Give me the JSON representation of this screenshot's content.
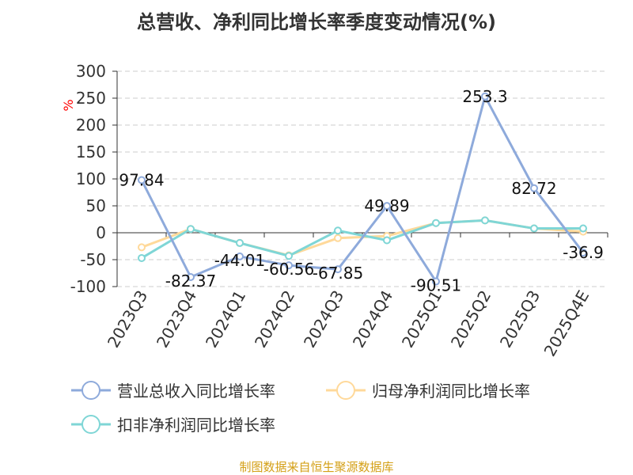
{
  "title": "总营收、净利同比增长率季度变动情况(%)",
  "source": "制图数据来自恒生聚源数据库",
  "chart_data": {
    "type": "line",
    "title": "总营收、净利同比增长率季度变动情况(%)",
    "ylabel": "%",
    "ylim": [
      -100,
      300
    ],
    "yticks": [
      300,
      250,
      200,
      150,
      100,
      50,
      0,
      -50,
      -100
    ],
    "grid": true,
    "legend_position": "bottom",
    "categories": [
      "2023Q3",
      "2023Q4",
      "2024Q1",
      "2024Q2",
      "2024Q3",
      "2024Q4",
      "2025Q1",
      "2025Q2",
      "2025Q3",
      "2025Q4E"
    ],
    "series": [
      {
        "name": "营业总收入同比增长率",
        "color": "#8eaadb",
        "values": [
          97.84,
          -82.37,
          -44.01,
          -60.56,
          -67.85,
          49.89,
          -90.51,
          253.3,
          82.72,
          -36.9
        ],
        "labels": [
          "97.84",
          "-82.37",
          "-44.01",
          "-60.56",
          "-67.85",
          "49.89",
          "-90.51",
          "253.3",
          "82.72",
          "-36.9"
        ]
      },
      {
        "name": "归母净利润同比增长率",
        "color": "#ffd99a",
        "values": [
          -27,
          7,
          -19,
          -42,
          -10,
          -6,
          18,
          23,
          8,
          2
        ]
      },
      {
        "name": "扣非净利润同比增长率",
        "color": "#7fd6d6",
        "values": [
          -47,
          7,
          -19,
          -43,
          4,
          -14,
          18,
          23,
          8,
          8
        ]
      }
    ]
  }
}
